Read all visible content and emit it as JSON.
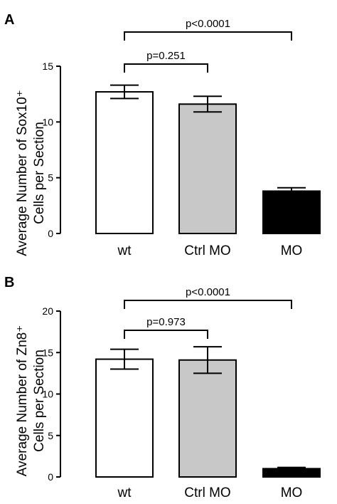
{
  "chart_data": [
    {
      "type": "bar",
      "panel": "A",
      "categories": [
        "wt",
        "Ctrl MO",
        "MO"
      ],
      "values": [
        12.7,
        11.6,
        3.8
      ],
      "errors": [
        0.6,
        0.7,
        0.3
      ],
      "bar_colors": [
        "#ffffff",
        "#c8c8c8",
        "#000000"
      ],
      "ylabel": [
        "Average Number of Sox10⁺",
        "Cells per Section"
      ],
      "ylim": [
        0,
        15
      ],
      "yticks": [
        "0",
        "5",
        "10",
        "15"
      ],
      "comparisons": [
        {
          "from": "wt",
          "to": "Ctrl MO",
          "label": "p=0.251"
        },
        {
          "from": "wt",
          "to": "MO",
          "label": "p<0.0001"
        }
      ],
      "grid": false
    },
    {
      "type": "bar",
      "panel": "B",
      "categories": [
        "wt",
        "Ctrl MO",
        "MO"
      ],
      "values": [
        14.2,
        14.1,
        1.0
      ],
      "errors": [
        1.2,
        1.6,
        0.15
      ],
      "bar_colors": [
        "#ffffff",
        "#c8c8c8",
        "#000000"
      ],
      "ylabel": [
        "Average Number of Zn8⁺",
        "Cells per Section"
      ],
      "ylim": [
        0,
        20
      ],
      "yticks": [
        "0",
        "5",
        "10",
        "15",
        "20"
      ],
      "comparisons": [
        {
          "from": "wt",
          "to": "Ctrl MO",
          "label": "p=0.973"
        },
        {
          "from": "wt",
          "to": "MO",
          "label": "p<0.0001"
        }
      ],
      "grid": false
    }
  ]
}
